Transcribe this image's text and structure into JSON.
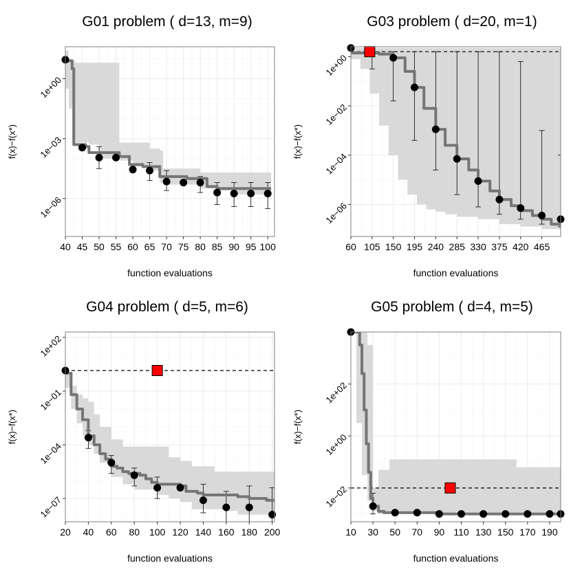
{
  "figure": {
    "colors": {
      "band": "#d9d9d9",
      "line": "#757575",
      "point": "#000000",
      "grid": "#ebebeb",
      "marker": "#ff0000",
      "dashed": "#000000"
    }
  },
  "chart_data": [
    {
      "type": "line",
      "title": "G01 problem ( d=13, m=9)",
      "xlabel": "function evaluations",
      "ylabel": "f(x)−f(x*)",
      "xlim": [
        40,
        102
      ],
      "ylim_log10": [
        -7.9,
        1.6
      ],
      "xticks": [
        40,
        45,
        50,
        55,
        60,
        65,
        70,
        75,
        80,
        85,
        90,
        95,
        100
      ],
      "xtick_labels": [
        "40",
        "45",
        "50",
        "55",
        "60",
        "65",
        "70",
        "75",
        "80",
        "85",
        "90",
        "95",
        "100"
      ],
      "yticks_log10": [
        0,
        -3,
        -6
      ],
      "ytick_labels": [
        "1e+00",
        "1e−03",
        "1e−06"
      ],
      "line": {
        "x": [
          40,
          42,
          42.5,
          46,
          47,
          52,
          55,
          56,
          59,
          60,
          63,
          65,
          68,
          70,
          73,
          76,
          80,
          82,
          85,
          88,
          92,
          95,
          98,
          101
        ],
        "y": [
          0.9,
          0.5,
          -3.3,
          -3.4,
          -3.7,
          -3.7,
          -3.7,
          -3.9,
          -4.3,
          -4.3,
          -4.4,
          -4.4,
          -4.9,
          -4.9,
          -4.9,
          -5.0,
          -5.0,
          -5.4,
          -5.5,
          -5.5,
          -5.5,
          -5.5,
          -5.5,
          -5.5
        ]
      },
      "band": {
        "x": [
          40,
          41,
          42,
          43,
          47,
          50,
          55,
          56,
          60,
          65,
          68,
          69,
          75,
          80,
          85,
          90,
          95,
          100,
          101
        ],
        "lower": [
          -0.5,
          -1.5,
          -3.0,
          -3.2,
          -3.3,
          -4.0,
          -4.0,
          -4.1,
          -4.4,
          -4.6,
          -5.2,
          -5.3,
          -5.3,
          -5.5,
          -5.6,
          -5.8,
          -5.8,
          -5.9,
          -7.6
        ],
        "upper": [
          1.4,
          0.9,
          0.9,
          0.8,
          0.8,
          0.8,
          0.8,
          -3.2,
          -3.2,
          -3.5,
          -3.6,
          -4.5,
          -4.5,
          -4.7,
          -4.7,
          -4.7,
          -4.7,
          -4.7,
          -4.7
        ]
      },
      "points": {
        "x": [
          40,
          45,
          50,
          55,
          60,
          65,
          70,
          75,
          80,
          85,
          90,
          95,
          100
        ],
        "y": [
          0.95,
          -3.45,
          -3.95,
          -3.95,
          -4.55,
          -4.6,
          -5.15,
          -5.2,
          -5.2,
          -5.7,
          -5.75,
          -5.75,
          -5.75
        ]
      },
      "errorbars": {
        "x": [
          50,
          65,
          70,
          80,
          85,
          90,
          95,
          100
        ],
        "lower": [
          -4.5,
          -5.1,
          -5.6,
          -5.7,
          -6.3,
          -6.4,
          -6.4,
          -6.5
        ],
        "upper": [
          -3.4,
          -4.2,
          -4.6,
          -4.9,
          -5.2,
          -5.2,
          -5.2,
          -5.2
        ]
      },
      "reference": null,
      "marker": null
    },
    {
      "type": "line",
      "title": "G03 problem ( d=20, m=1)",
      "xlabel": "function evaluations",
      "ylabel": "f(x)−f(x*)",
      "xlim": [
        60,
        505
      ],
      "ylim_log10": [
        -7.3,
        0.4
      ],
      "xticks": [
        60,
        105,
        150,
        195,
        240,
        285,
        330,
        375,
        420,
        465
      ],
      "xtick_labels": [
        "60",
        "105",
        "150",
        "195",
        "240",
        "285",
        "330",
        "375",
        "420",
        "465"
      ],
      "yticks_log10": [
        0,
        -2,
        -4,
        -6
      ],
      "ytick_labels": [
        "1e+00",
        "1e−02",
        "1e−04",
        "1e−06"
      ],
      "line": {
        "x": [
          60,
          120,
          150,
          175,
          195,
          215,
          240,
          260,
          285,
          310,
          330,
          355,
          375,
          400,
          420,
          445,
          465,
          485,
          505
        ],
        "y": [
          0.15,
          0.1,
          -0.05,
          -0.6,
          -1.25,
          -2.1,
          -2.95,
          -3.6,
          -4.15,
          -4.6,
          -5.05,
          -5.45,
          -5.8,
          -6.05,
          -6.25,
          -6.45,
          -6.6,
          -6.8,
          -6.95
        ]
      },
      "band": {
        "x": [
          60,
          80,
          100,
          120,
          140,
          160,
          180,
          200,
          220,
          240,
          260,
          285,
          330,
          375,
          420,
          465,
          505
        ],
        "lower": [
          -0.1,
          -0.5,
          -1.5,
          -2.8,
          -4.0,
          -5.0,
          -5.6,
          -6.0,
          -6.2,
          -6.3,
          -6.4,
          -6.5,
          -6.6,
          -6.8,
          -6.9,
          -7.0,
          -7.1
        ],
        "upper": [
          0.35,
          0.35,
          0.35,
          0.35,
          0.35,
          0.35,
          0.35,
          0.35,
          0.35,
          0.35,
          0.35,
          0.35,
          0.35,
          0.35,
          0.35,
          0.35,
          0.35
        ]
      },
      "points": {
        "x": [
          60,
          150,
          195,
          240,
          285,
          330,
          375,
          420,
          465,
          505
        ],
        "y": [
          0.35,
          -0.05,
          -1.25,
          -2.95,
          -4.15,
          -5.05,
          -5.8,
          -6.15,
          -6.45,
          -6.6
        ]
      },
      "errorbars": {
        "x": [
          105,
          150,
          195,
          240,
          285,
          330,
          375,
          420,
          465,
          505
        ],
        "lower": [
          -0.5,
          -1.8,
          -3.4,
          -4.6,
          -5.6,
          -6.1,
          -6.4,
          -6.6,
          -6.8,
          -6.9
        ],
        "upper": [
          0.25,
          0.2,
          0.2,
          0.2,
          0.2,
          0.2,
          0.2,
          -0.2,
          -3.0,
          -4.0
        ]
      },
      "reference": {
        "y": 0.2
      },
      "marker": {
        "x": 100,
        "y": 0.2
      }
    },
    {
      "type": "line",
      "title": "G04 problem ( d=5, m=6)",
      "xlabel": "function evaluations",
      "ylabel": "f(x)−f(x*)",
      "xlim": [
        20,
        202
      ],
      "ylim_log10": [
        -8.3,
        2.3
      ],
      "xticks": [
        20,
        40,
        60,
        80,
        100,
        120,
        140,
        160,
        180,
        200
      ],
      "xtick_labels": [
        "20",
        "40",
        "60",
        "80",
        "100",
        "120",
        "140",
        "160",
        "180",
        "200"
      ],
      "yticks_log10": [
        2,
        -1,
        -4,
        -7
      ],
      "ytick_labels": [
        "1e+02",
        "1e−01",
        "1e−04",
        "1e−07"
      ],
      "line": {
        "x": [
          20,
          25,
          30,
          35,
          40,
          45,
          50,
          55,
          60,
          65,
          70,
          75,
          80,
          85,
          90,
          95,
          100,
          110,
          120,
          125,
          135,
          140,
          150,
          160,
          170,
          180,
          185,
          195,
          202
        ],
        "y": [
          0.0,
          -1.2,
          -2.0,
          -2.6,
          -3.5,
          -4.0,
          -4.5,
          -4.8,
          -5.2,
          -5.3,
          -5.5,
          -5.6,
          -5.6,
          -5.7,
          -5.9,
          -6.1,
          -6.2,
          -6.2,
          -6.3,
          -6.6,
          -6.7,
          -6.8,
          -6.8,
          -6.8,
          -6.9,
          -7.0,
          -7.0,
          -7.1,
          -7.1
        ]
      },
      "band": {
        "x": [
          20,
          25,
          30,
          35,
          40,
          45,
          50,
          60,
          70,
          80,
          90,
          100,
          110,
          120,
          130,
          140,
          150,
          160,
          170,
          180,
          190,
          202
        ],
        "lower": [
          -0.8,
          -2.0,
          -2.8,
          -3.5,
          -4.0,
          -4.5,
          -5.0,
          -5.8,
          -6.2,
          -6.5,
          -6.5,
          -6.8,
          -7.0,
          -7.2,
          -7.6,
          -7.6,
          -7.6,
          -7.7,
          -7.9,
          -7.9,
          -7.9,
          -7.9
        ],
        "upper": [
          0.0,
          -0.7,
          -1.2,
          -1.4,
          -1.6,
          -2.3,
          -3.0,
          -3.7,
          -4.1,
          -4.1,
          -4.1,
          -4.1,
          -4.7,
          -4.9,
          -5.2,
          -5.2,
          -5.5,
          -5.5,
          -5.5,
          -5.5,
          -5.5,
          -5.5
        ]
      },
      "points": {
        "x": [
          20,
          40,
          60,
          80,
          100,
          120,
          140,
          160,
          180,
          200
        ],
        "y": [
          0.15,
          -3.6,
          -5.0,
          -5.7,
          -6.4,
          -6.4,
          -7.1,
          -7.5,
          -7.5,
          -7.9
        ]
      },
      "errorbars": {
        "x": [
          40,
          60,
          80,
          100,
          140,
          160,
          180,
          200
        ],
        "lower": [
          -4.2,
          -5.6,
          -6.3,
          -7.0,
          -7.8,
          -8.3,
          -8.3,
          -8.6
        ],
        "upper": [
          -3.2,
          -4.6,
          -5.3,
          -5.8,
          -6.2,
          -6.6,
          -6.3,
          -6.4
        ]
      },
      "reference": {
        "y": 0.15
      },
      "marker": {
        "x": 100,
        "y": 0.15
      }
    },
    {
      "type": "line",
      "title": "G05 problem ( d=4, m=5)",
      "xlabel": "function evaluations",
      "ylabel": "f(x)−f(x*)",
      "xlim": [
        10,
        200
      ],
      "ylim_log10": [
        -3.3,
        4.0
      ],
      "xticks": [
        10,
        30,
        50,
        70,
        90,
        110,
        130,
        150,
        170,
        190
      ],
      "xtick_labels": [
        "10",
        "30",
        "50",
        "70",
        "90",
        "110",
        "130",
        "150",
        "170",
        "190"
      ],
      "yticks_log10": [
        2,
        0,
        -2
      ],
      "ytick_labels": [
        "1e+02",
        "1e+00",
        "1e−02"
      ],
      "line": {
        "x": [
          10,
          14,
          16,
          18,
          20,
          22,
          24,
          26,
          28,
          30,
          35,
          40,
          50,
          70,
          90,
          110,
          130,
          150,
          170,
          190,
          200
        ],
        "y": [
          4.0,
          4.0,
          4.0,
          3.5,
          2.4,
          1.0,
          -0.3,
          -1.4,
          -2.4,
          -2.7,
          -2.9,
          -2.95,
          -2.95,
          -2.95,
          -3.0,
          -3.0,
          -3.0,
          -3.0,
          -3.0,
          -3.0,
          -3.0
        ]
      },
      "band": {
        "x": [
          10,
          15,
          20,
          25,
          30,
          35,
          45,
          60,
          90,
          120,
          150,
          160,
          175,
          190,
          200
        ],
        "lower": [
          4.0,
          0.5,
          -1.5,
          -2.5,
          -2.9,
          -3.0,
          -3.0,
          -3.0,
          -3.0,
          -3.0,
          -3.0,
          -3.0,
          -3.0,
          -3.0,
          -3.0
        ],
        "upper": [
          4.0,
          4.0,
          4.0,
          3.5,
          -2.0,
          -1.3,
          -0.9,
          -0.9,
          -0.9,
          -0.9,
          -0.9,
          -1.2,
          -1.2,
          -1.2,
          -1.3
        ]
      },
      "points": {
        "x": [
          10,
          30,
          50,
          70,
          90,
          110,
          130,
          150,
          170,
          190,
          200
        ],
        "y": [
          4.0,
          -2.7,
          -2.95,
          -2.95,
          -3.0,
          -3.0,
          -3.0,
          -3.0,
          -3.0,
          -3.0,
          -3.0
        ]
      },
      "errorbars": {
        "x": [
          30
        ],
        "lower": [
          -3.0
        ],
        "upper": [
          -2.2
        ]
      },
      "reference": {
        "y": -2.0
      },
      "marker": {
        "x": 100,
        "y": -2.0
      }
    }
  ]
}
